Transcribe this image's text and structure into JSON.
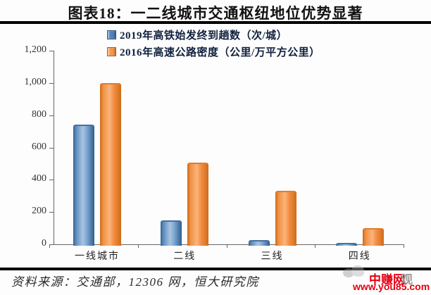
{
  "title": "图表18：一二线城市交通枢纽地位优势显著",
  "chart_data": {
    "type": "bar",
    "categories": [
      "一线城市",
      "二线",
      "三线",
      "四线"
    ],
    "series": [
      {
        "name": "2019年高铁始发终到趟数（次/城）",
        "color": "#4f81bd",
        "values": [
          740,
          150,
          28,
          8
        ]
      },
      {
        "name": "2016年高速公路密度（公里/万平方公里）",
        "color": "#f79646",
        "values": [
          1000,
          505,
          330,
          100
        ]
      }
    ],
    "title": "图表18：一二线城市交通枢纽地位优势显著",
    "xlabel": "",
    "ylabel": "",
    "ylim": [
      0,
      1200
    ],
    "ytick_interval": 200,
    "ytick_labels": [
      "0",
      "200",
      "400",
      "600",
      "800",
      "1,000",
      "1,200"
    ],
    "grid": false,
    "legend_position": "top"
  },
  "source_note": "资料来源：交通部，12306 网，恒大研究院",
  "watermark": {
    "site_name": "中赚网",
    "shadow_char": "观",
    "url": "www.you85.com",
    "accent_color": "#e60012"
  }
}
